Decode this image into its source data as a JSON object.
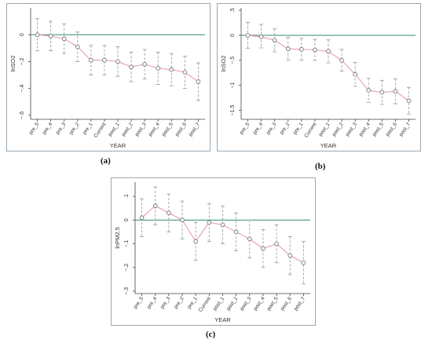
{
  "captions": [
    "(a)",
    "(b)",
    "(c)"
  ],
  "chart_data": [
    {
      "type": "line",
      "ylabel": "lnSO2",
      "xlabel": "YEAR",
      "categories": [
        "pre_5",
        "pre_4",
        "pre_3",
        "pre_2",
        "pre_1",
        "Current",
        "post_1",
        "post_2",
        "post_3",
        "post_4",
        "post_5",
        "post_6",
        "post_7"
      ],
      "yticks": [
        0,
        -0.2,
        -0.4,
        -0.6
      ],
      "ylim": [
        -0.63,
        0.2
      ],
      "reference_line": 0,
      "series": [
        {
          "values": [
            0.0,
            -0.01,
            -0.03,
            -0.09,
            -0.19,
            -0.19,
            -0.2,
            -0.24,
            -0.22,
            -0.25,
            -0.26,
            -0.28,
            -0.35
          ],
          "ci_low": [
            -0.12,
            -0.12,
            -0.14,
            -0.2,
            -0.3,
            -0.3,
            -0.31,
            -0.35,
            -0.33,
            -0.37,
            -0.38,
            -0.4,
            -0.49
          ],
          "ci_high": [
            0.12,
            0.1,
            0.08,
            0.02,
            -0.08,
            -0.08,
            -0.09,
            -0.13,
            -0.11,
            -0.13,
            -0.14,
            -0.16,
            -0.21
          ]
        }
      ]
    },
    {
      "type": "line",
      "ylabel": "lnSO2",
      "xlabel": "YEAR",
      "categories": [
        "pre_5",
        "pre_4",
        "pre_3",
        "pre_2",
        "pre_1",
        "Current",
        "post_1",
        "post_2",
        "post_3",
        "post_4",
        "post_5",
        "post_6",
        "post_7"
      ],
      "yticks": [
        0.5,
        0,
        -0.5,
        -1,
        -1.5
      ],
      "ylim": [
        -1.68,
        0.55
      ],
      "reference_line": 0,
      "series": [
        {
          "values": [
            0.0,
            -0.03,
            -0.1,
            -0.27,
            -0.28,
            -0.29,
            -0.32,
            -0.5,
            -0.78,
            -1.1,
            -1.14,
            -1.12,
            -1.31
          ],
          "ci_low": [
            -0.26,
            -0.25,
            -0.33,
            -0.5,
            -0.5,
            -0.5,
            -0.55,
            -0.72,
            -1.02,
            -1.34,
            -1.38,
            -1.37,
            -1.58
          ],
          "ci_high": [
            0.26,
            0.22,
            0.13,
            -0.04,
            -0.06,
            -0.08,
            -0.09,
            -0.28,
            -0.54,
            -0.86,
            -0.9,
            -0.87,
            -1.04
          ]
        }
      ]
    },
    {
      "type": "line",
      "ylabel": "lnPM2.5",
      "xlabel": "YEAR",
      "categories": [
        "pre_5",
        "pre_4",
        "pre_3",
        "pre_2",
        "pre_1",
        "Current",
        "post_1",
        "post_2",
        "post_3",
        "post_4",
        "post_5",
        "post_6",
        "post_7"
      ],
      "yticks": [
        0.1,
        0,
        -0.1,
        -0.2,
        -0.3
      ],
      "ylim": [
        -0.31,
        0.16
      ],
      "reference_line": 0,
      "series": [
        {
          "values": [
            0.01,
            0.06,
            0.03,
            0.0,
            -0.09,
            -0.01,
            -0.02,
            -0.05,
            -0.08,
            -0.12,
            -0.1,
            -0.15,
            -0.18
          ],
          "ci_low": [
            -0.07,
            -0.02,
            -0.05,
            -0.08,
            -0.17,
            -0.09,
            -0.1,
            -0.13,
            -0.16,
            -0.2,
            -0.18,
            -0.23,
            -0.27
          ],
          "ci_high": [
            0.09,
            0.14,
            0.11,
            0.08,
            -0.01,
            0.07,
            0.06,
            0.03,
            0.0,
            -0.04,
            -0.02,
            -0.07,
            -0.09
          ]
        }
      ]
    }
  ],
  "colors": {
    "line": "#e8a0a8",
    "ci": "#9aa2a8",
    "reference": "#2e8b7a",
    "point_fill": "#ffffff",
    "point_stroke": "#666666",
    "axis": "#444444"
  }
}
